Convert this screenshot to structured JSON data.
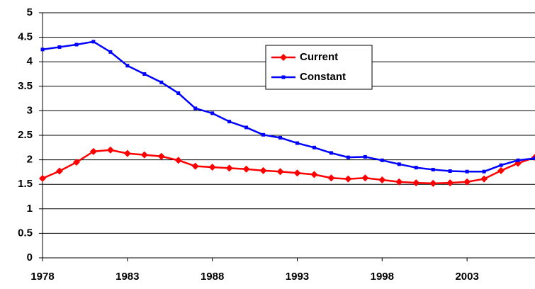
{
  "chart_data": {
    "type": "line",
    "x": [
      1978,
      1979,
      1980,
      1981,
      1982,
      1983,
      1984,
      1985,
      1986,
      1987,
      1988,
      1989,
      1990,
      1991,
      1992,
      1993,
      1994,
      1995,
      1996,
      1997,
      1998,
      1999,
      2000,
      2001,
      2002,
      2003,
      2004,
      2005,
      2006,
      2007
    ],
    "series": [
      {
        "name": "Current",
        "color": "#ff0000",
        "marker": "diamond",
        "values": [
          1.62,
          1.77,
          1.95,
          2.17,
          2.2,
          2.13,
          2.1,
          2.07,
          1.99,
          1.87,
          1.85,
          1.83,
          1.81,
          1.78,
          1.76,
          1.73,
          1.7,
          1.63,
          1.61,
          1.63,
          1.59,
          1.55,
          1.53,
          1.52,
          1.53,
          1.55,
          1.61,
          1.78,
          1.93,
          2.05
        ]
      },
      {
        "name": "Constant",
        "color": "#0000ff",
        "marker": "square",
        "values": [
          4.25,
          4.3,
          4.35,
          4.41,
          4.2,
          3.92,
          3.75,
          3.58,
          3.36,
          3.05,
          2.95,
          2.78,
          2.66,
          2.51,
          2.45,
          2.34,
          2.25,
          2.14,
          2.05,
          2.06,
          1.99,
          1.91,
          1.84,
          1.8,
          1.77,
          1.76,
          1.76,
          1.89,
          1.99,
          2.03
        ]
      }
    ],
    "xlim": [
      1978,
      2007
    ],
    "xticks": [
      1978,
      1983,
      1988,
      1993,
      1998,
      2003
    ],
    "ylim": [
      0,
      5
    ],
    "yticks": [
      0,
      0.5,
      1,
      1.5,
      2,
      2.5,
      3,
      3.5,
      4,
      4.5,
      5
    ],
    "grid": true
  }
}
